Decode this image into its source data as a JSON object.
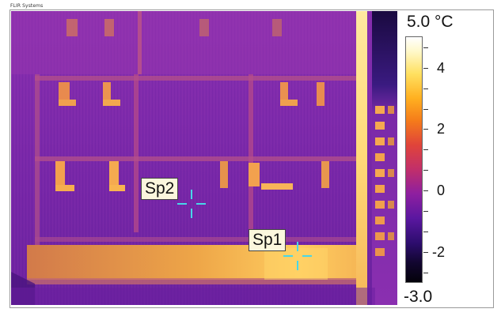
{
  "window": {
    "vendor_label": "FLIR Systems"
  },
  "spots": [
    {
      "label": "Sp2",
      "crosshair_color": "#48d6e8"
    },
    {
      "label": "Sp1",
      "crosshair_color": "#48d6e8"
    }
  ],
  "scale": {
    "max_label": "5.0 °C",
    "min_label": "-3.0",
    "max_value": 5.0,
    "min_value": -3.0,
    "ticks": [
      {
        "label": "4",
        "value": 4
      },
      {
        "label": "2",
        "value": 2
      },
      {
        "label": "0",
        "value": 0
      },
      {
        "label": "-2",
        "value": -2
      }
    ],
    "palette": "iron",
    "colors": {
      "hot": "#ffffff",
      "warm": "#ffb020",
      "mid": "#c12f6a",
      "cool": "#5a17a0",
      "cold": "#04020a"
    }
  }
}
